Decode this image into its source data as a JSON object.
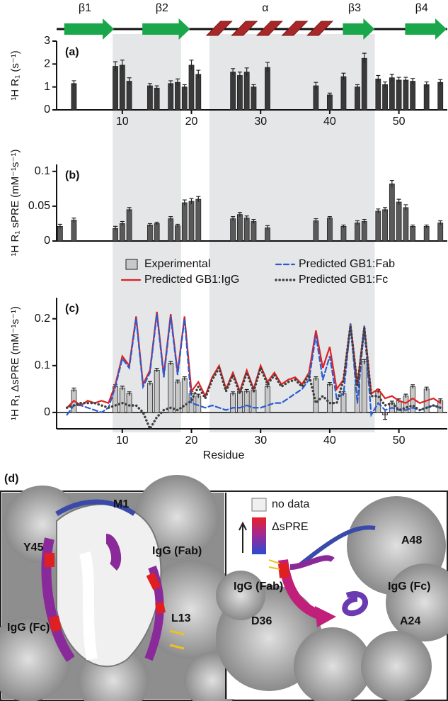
{
  "chart_data": [
    {
      "type": "bar",
      "label": "(a)",
      "ylabel": "¹H R₁ (s⁻¹)",
      "xlim": [
        0.5,
        57
      ],
      "xticks": [
        10,
        20,
        30,
        40,
        50
      ],
      "ylim": [
        0,
        3
      ],
      "yticks": [
        0,
        1,
        2,
        3
      ],
      "series": [
        {
          "type": "bar",
          "color": "#3a3a3a",
          "x": [
            3,
            9,
            10,
            11,
            14,
            15,
            17,
            18,
            19,
            20,
            21,
            26,
            27,
            28,
            29,
            31,
            38,
            40,
            42,
            44,
            45,
            47,
            48,
            49,
            50,
            51,
            52,
            54,
            56
          ],
          "values": [
            1.15,
            1.9,
            1.95,
            1.25,
            1.05,
            0.95,
            1.15,
            1.2,
            1.0,
            1.95,
            1.55,
            1.65,
            1.5,
            1.65,
            1.0,
            1.85,
            1.05,
            0.65,
            1.45,
            1.0,
            2.25,
            1.35,
            1.1,
            1.4,
            1.3,
            1.3,
            1.25,
            1.1,
            1.2
          ],
          "errors": [
            0.12,
            0.2,
            0.22,
            0.15,
            0.1,
            0.1,
            0.12,
            0.15,
            0.1,
            0.22,
            0.18,
            0.15,
            0.15,
            0.18,
            0.1,
            0.22,
            0.15,
            0.08,
            0.15,
            0.1,
            0.22,
            0.15,
            0.12,
            0.15,
            0.12,
            0.12,
            0.12,
            0.12,
            0.12
          ]
        }
      ]
    },
    {
      "type": "bar",
      "label": "(b)",
      "ylabel": "¹H R₁ sPRE (mM⁻¹s⁻¹)",
      "xlim": [
        0.5,
        57
      ],
      "ylim": [
        0,
        0.11
      ],
      "yticks": [
        0,
        0.05,
        0.1
      ],
      "series": [
        {
          "type": "bar",
          "color": "#5a5a5a",
          "x": [
            1,
            3,
            9,
            10,
            11,
            14,
            15,
            17,
            18,
            19,
            20,
            21,
            26,
            27,
            28,
            29,
            31,
            38,
            40,
            42,
            44,
            45,
            47,
            48,
            49,
            50,
            51,
            52,
            54,
            56
          ],
          "values": [
            0.021,
            0.03,
            0.018,
            0.025,
            0.045,
            0.023,
            0.025,
            0.032,
            0.022,
            0.055,
            0.057,
            0.06,
            0.032,
            0.038,
            0.033,
            0.028,
            0.019,
            0.029,
            0.033,
            0.021,
            0.026,
            0.028,
            0.043,
            0.045,
            0.082,
            0.056,
            0.048,
            0.021,
            0.021,
            0.026
          ],
          "errors": [
            0.003,
            0.003,
            0.003,
            0.003,
            0.003,
            0.002,
            0.002,
            0.003,
            0.002,
            0.004,
            0.004,
            0.004,
            0.003,
            0.003,
            0.003,
            0.003,
            0.003,
            0.003,
            0.002,
            0.002,
            0.003,
            0.003,
            0.003,
            0.003,
            0.005,
            0.004,
            0.004,
            0.002,
            0.002,
            0.003
          ]
        }
      ]
    },
    {
      "type": "bar",
      "label": "(c)",
      "ylabel": "¹H R₁ ΔsPRE (mM⁻¹s⁻¹)",
      "xlabel": "Residue",
      "xlim": [
        0.5,
        57
      ],
      "xticks": [
        10,
        20,
        30,
        40,
        50
      ],
      "ylim": [
        -0.035,
        0.245
      ],
      "yticks": [
        0,
        0.1,
        0.2
      ],
      "series": [
        {
          "type": "bar",
          "name": "Experimental",
          "color": "#c8c8c8",
          "x": [
            3,
            9,
            10,
            11,
            14,
            15,
            17,
            18,
            19,
            20,
            21,
            26,
            27,
            28,
            29,
            31,
            38,
            40,
            42,
            44,
            45,
            47,
            48,
            49,
            50,
            51,
            52,
            54,
            56
          ],
          "values": [
            0.048,
            0.055,
            0.052,
            0.04,
            0.062,
            0.09,
            0.105,
            0.065,
            0.072,
            0.04,
            0.035,
            0.04,
            0.045,
            0.045,
            0.048,
            0.055,
            0.072,
            0.06,
            0.04,
            0.06,
            0.108,
            0.045,
            -0.005,
            0.02,
            0.025,
            0.035,
            0.055,
            0.05,
            0.025
          ],
          "errors": [
            0.004,
            0.004,
            0.004,
            0.004,
            0.004,
            0.004,
            0.004,
            0.004,
            0.004,
            0.004,
            0.004,
            0.004,
            0.004,
            0.004,
            0.004,
            0.004,
            0.004,
            0.004,
            0.004,
            0.004,
            0.005,
            0.004,
            0.01,
            0.004,
            0.004,
            0.004,
            0.004,
            0.004,
            0.004
          ]
        },
        {
          "type": "line",
          "name": "Predicted GB1:IgG",
          "color": "#e02020",
          "dash": "solid",
          "x": [
            2,
            3,
            4,
            5,
            6,
            7,
            8,
            9,
            10,
            11,
            12,
            13,
            14,
            15,
            16,
            17,
            18,
            19,
            20,
            21,
            22,
            23,
            24,
            25,
            26,
            27,
            28,
            29,
            30,
            31,
            32,
            33,
            34,
            35,
            36,
            37,
            38,
            39,
            40,
            41,
            42,
            43,
            44,
            45,
            46,
            47,
            48,
            49,
            50,
            51,
            52,
            53,
            54,
            55,
            56
          ],
          "values": [
            0.01,
            0.025,
            0.015,
            0.025,
            0.02,
            0.025,
            0.02,
            0.06,
            0.12,
            0.1,
            0.205,
            0.06,
            0.09,
            0.215,
            0.08,
            0.21,
            0.085,
            0.205,
            0.045,
            0.065,
            0.035,
            0.075,
            0.1,
            0.05,
            0.085,
            0.045,
            0.09,
            0.05,
            0.1,
            0.065,
            0.085,
            0.06,
            0.07,
            0.075,
            0.06,
            0.085,
            0.175,
            0.095,
            0.14,
            0.05,
            0.07,
            0.19,
            0.06,
            0.185,
            0.04,
            0.05,
            0.03,
            0.035,
            0.025,
            0.02,
            0.03,
            0.02,
            0.025,
            0.03,
            0.02
          ]
        },
        {
          "type": "line",
          "name": "Predicted GB1:Fab",
          "color": "#2a5bd0",
          "dash": "dashed",
          "x": [
            2,
            3,
            4,
            5,
            6,
            7,
            8,
            9,
            10,
            11,
            12,
            13,
            14,
            15,
            16,
            17,
            18,
            19,
            20,
            21,
            22,
            23,
            24,
            25,
            26,
            27,
            28,
            29,
            30,
            31,
            32,
            33,
            34,
            35,
            36,
            37,
            38,
            39,
            40,
            41,
            42,
            43,
            44,
            45,
            46,
            47,
            48,
            49,
            50,
            51,
            52,
            53,
            54,
            55,
            56
          ],
          "values": [
            -0.005,
            0.015,
            0.015,
            0.01,
            0.005,
            0.0,
            0.01,
            0.055,
            0.115,
            0.095,
            0.2,
            0.055,
            0.085,
            0.21,
            0.075,
            0.205,
            0.08,
            0.2,
            0.02,
            0.015,
            0.01,
            0.015,
            0.01,
            0.005,
            0.01,
            0.01,
            0.015,
            0.01,
            0.01,
            0.015,
            0.02,
            0.02,
            0.03,
            0.04,
            0.05,
            0.07,
            0.165,
            0.07,
            0.12,
            0.03,
            0.04,
            0.19,
            0.02,
            0.185,
            -0.005,
            0.02,
            0.005,
            0.01,
            0.005,
            0.005,
            0.01,
            0.005,
            0.01,
            0.015,
            0.01
          ]
        },
        {
          "type": "line",
          "name": "Predicted GB1:Fc",
          "color": "#404040",
          "dash": "dotted",
          "x": [
            2,
            3,
            4,
            5,
            6,
            7,
            8,
            9,
            10,
            11,
            12,
            13,
            14,
            15,
            16,
            17,
            18,
            19,
            20,
            21,
            22,
            23,
            24,
            25,
            26,
            27,
            28,
            29,
            30,
            31,
            32,
            33,
            34,
            35,
            36,
            37,
            38,
            39,
            40,
            41,
            42,
            43,
            44,
            45,
            46,
            47,
            48,
            49,
            50,
            51,
            52,
            53,
            54,
            55,
            56
          ],
          "values": [
            0.01,
            0.015,
            0.02,
            0.02,
            0.02,
            0.015,
            0.01,
            0.015,
            0.02,
            0.015,
            0.015,
            0.0,
            -0.035,
            -0.01,
            0.005,
            0.01,
            0.005,
            0.015,
            0.025,
            0.055,
            0.03,
            0.07,
            0.095,
            0.045,
            0.08,
            0.04,
            0.085,
            0.045,
            0.095,
            0.06,
            0.08,
            0.055,
            0.065,
            0.07,
            0.055,
            0.08,
            0.02,
            0.035,
            0.02,
            0.02,
            0.07,
            0.185,
            0.055,
            0.18,
            0.035,
            0.035,
            0.015,
            0.02,
            0.005,
            0.01,
            0.015,
            0.005,
            0.01,
            0.015,
            0.01
          ]
        }
      ]
    }
  ],
  "highlights": [
    [
      8.6,
      18.5
    ],
    [
      22.6,
      46.5
    ]
  ],
  "secondary_structure": [
    {
      "label": "β1",
      "type": "strand",
      "start": 1.6,
      "end": 8.8
    },
    {
      "label": "β2",
      "type": "strand",
      "start": 12.9,
      "end": 19.8
    },
    {
      "label": "α",
      "type": "helix",
      "start": 22.2,
      "end": 40.4
    },
    {
      "label": "β3",
      "type": "strand",
      "start": 41.9,
      "end": 46.5
    },
    {
      "label": "β4",
      "type": "strand",
      "start": 50.9,
      "end": 56.9
    }
  ],
  "panel_d": {
    "label": "(d)",
    "left_labels": [
      "M1",
      "IgG (Fab)",
      "Y45",
      "L13",
      "IgG (Fc)"
    ],
    "legend": {
      "empty": "no data",
      "scale": "ΔsPRE"
    },
    "right_labels": [
      "A48",
      "IgG (Fc)",
      "IgG (Fab)",
      "D36",
      "A24"
    ]
  }
}
